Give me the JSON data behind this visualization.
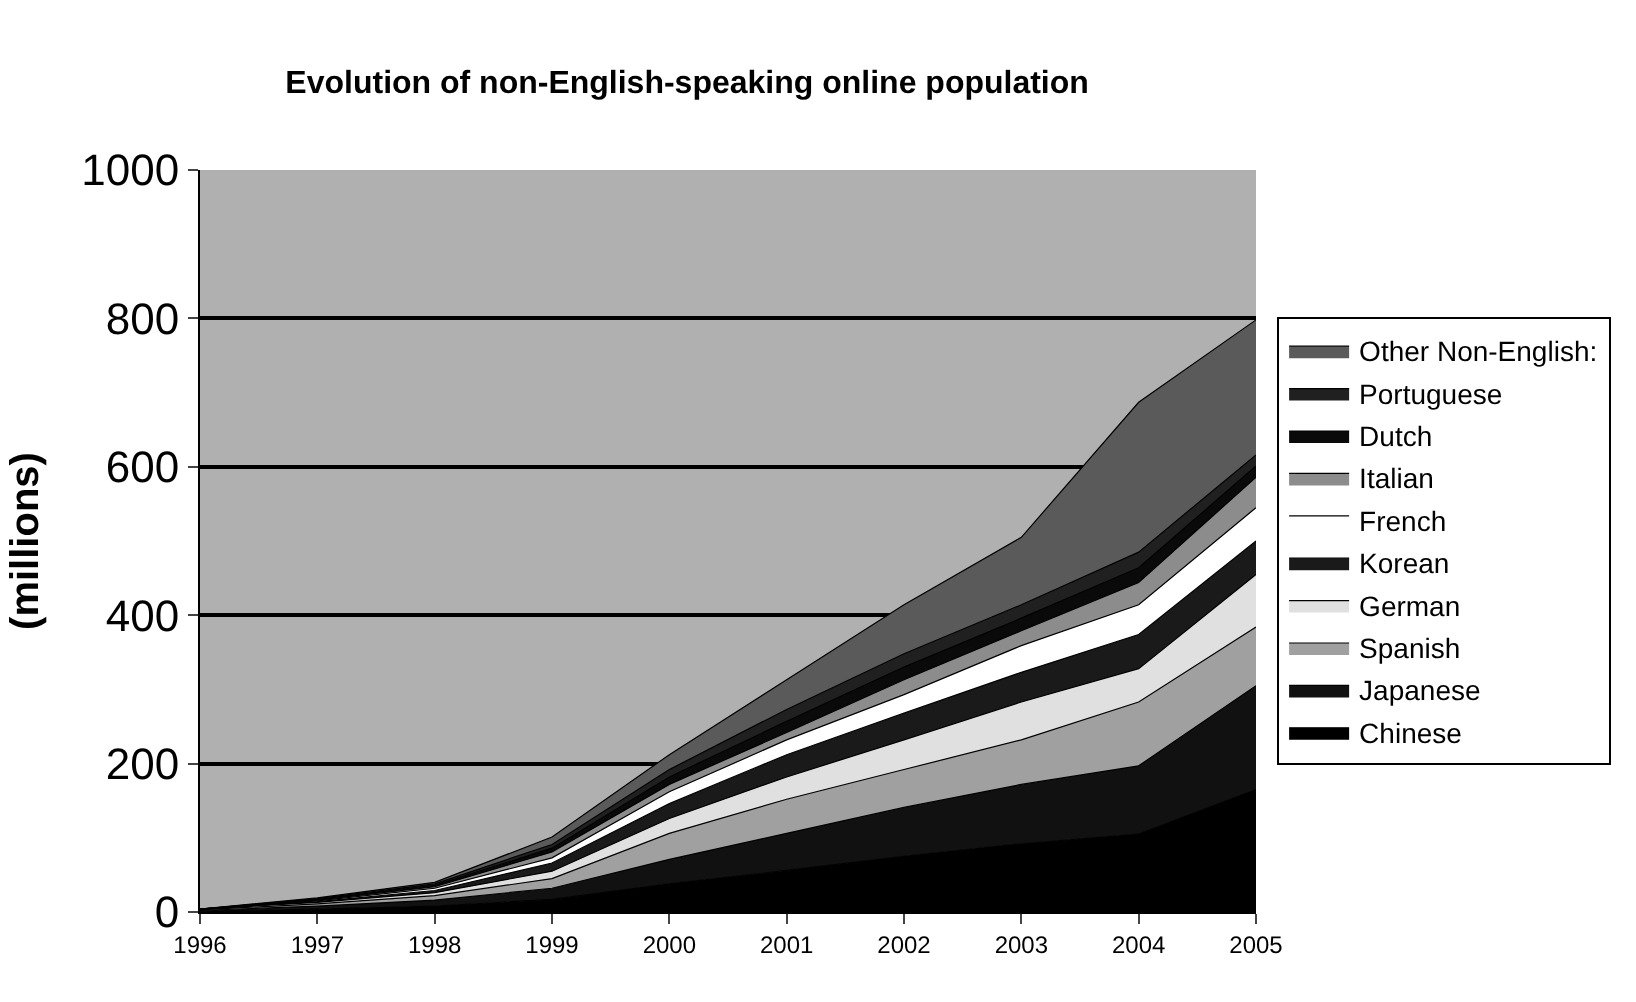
{
  "chart_data": {
    "type": "area",
    "title": "Evolution of non-English-speaking online population",
    "ylabel": "(millions)",
    "categories": [
      "1996",
      "1997",
      "1998",
      "1999",
      "2000",
      "2001",
      "2002",
      "2003",
      "2004",
      "2005"
    ],
    "stacked": true,
    "ylim": [
      0,
      1000
    ],
    "yticks": [
      0,
      200,
      400,
      600,
      800,
      1000
    ],
    "grid": "y",
    "legend": "right",
    "series": [
      {
        "name": "Chinese",
        "color": "#000000",
        "values": [
          1,
          4,
          8,
          17,
          38,
          56,
          75,
          92,
          105,
          165
        ]
      },
      {
        "name": "Japanese",
        "color": "#111111",
        "values": [
          1,
          4,
          8,
          15,
          33,
          50,
          66,
          80,
          92,
          140
        ]
      },
      {
        "name": "Spanish",
        "color": "#a0a0a0",
        "values": [
          1,
          3,
          6,
          13,
          35,
          46,
          51,
          60,
          86,
          79
        ]
      },
      {
        "name": "German",
        "color": "#e0e0e0",
        "values": [
          1,
          2,
          4,
          10,
          20,
          30,
          40,
          51,
          45,
          71
        ]
      },
      {
        "name": "Korean",
        "color": "#1a1a1a",
        "values": [
          0,
          1,
          3,
          11,
          20,
          30,
          36,
          40,
          46,
          45
        ]
      },
      {
        "name": "French",
        "color": "#ffffff",
        "values": [
          0,
          1,
          3,
          7,
          16,
          20,
          25,
          36,
          40,
          45
        ]
      },
      {
        "name": "Italian",
        "color": "#8c8c8c",
        "values": [
          0,
          1,
          2,
          8,
          10,
          10,
          20,
          20,
          30,
          41
        ]
      },
      {
        "name": "Dutch",
        "color": "#0a0a0a",
        "values": [
          0,
          1,
          2,
          5,
          10,
          15,
          17,
          17,
          20,
          15
        ]
      },
      {
        "name": "Portuguese",
        "color": "#202020",
        "values": [
          0,
          1,
          2,
          5,
          10,
          16,
          18,
          18,
          21,
          15
        ]
      },
      {
        "name": "Other Non-English:",
        "color": "#5a5a5a",
        "values": [
          0,
          1,
          2,
          10,
          20,
          40,
          66,
          91,
          202,
          182
        ]
      }
    ]
  }
}
